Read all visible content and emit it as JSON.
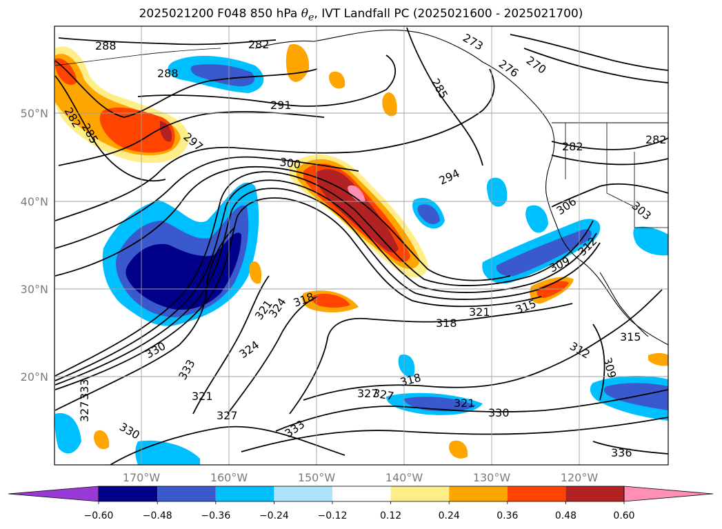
{
  "title_prefix": "2025021200 F048 850 hPa ",
  "title_symbol": "θ",
  "title_subscript": "e",
  "title_suffix": ", IVT Landfall PC (2025021600 - 2025021700)",
  "latitude_labels": [
    "50°N",
    "40°N",
    "30°N",
    "20°N"
  ],
  "longitude_labels": [
    "170°W",
    "160°W",
    "150°W",
    "140°W",
    "130°W",
    "120°W"
  ],
  "contour_labels": [
    "288",
    "288",
    "282",
    "285",
    "282",
    "285",
    "291",
    "273",
    "276",
    "270",
    "297",
    "300",
    "294",
    "282",
    "282",
    "303",
    "306",
    "312",
    "309",
    "315",
    "321",
    "318",
    "321",
    "324",
    "318",
    "315",
    "312",
    "309",
    "324",
    "330",
    "333",
    "327",
    "318",
    "327",
    "321",
    "330",
    "321",
    "327",
    "330",
    "333",
    "336",
    "327",
    "333"
  ],
  "colorbar": {
    "labels": [
      "−0.60",
      "−0.48",
      "−0.36",
      "−0.24",
      "−0.12",
      "0.12",
      "0.24",
      "0.36",
      "0.48",
      "0.60"
    ],
    "colors": [
      "#9a3ad6",
      "#00008b",
      "#3a59cc",
      "#00bfff",
      "#ade3ff",
      "#ffffff",
      "#ffee88",
      "#ffa500",
      "#ff4400",
      "#b22222",
      "#ff8fb3"
    ]
  },
  "colors": {
    "contour": "#000000",
    "coast": "#000000",
    "grid": "#a0a0a0",
    "axis_label": "#7a7a7a"
  }
}
